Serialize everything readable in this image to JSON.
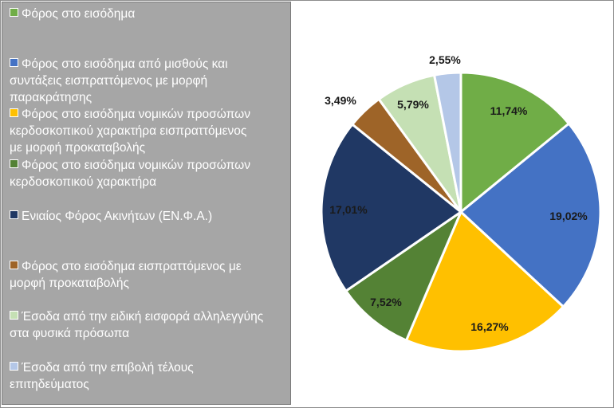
{
  "chart_data": {
    "type": "pie",
    "categories": [
      "Φόρος στο εισόδημα",
      "Φόρος στο εισόδημα από μισθούς και συντάξεις εισπραττόμενος με μορφή παρακράτησης",
      "Φόρος στο εισόδημα νομικών προσώπων κερδοσκοπικού χαρακτήρα εισπραττόμενος με μορφή προκαταβολής",
      "Φόρος στο εισόδημα νομικών προσώπων κερδοσκοπικού χαρακτήρα",
      "Ενιαίος Φόρος Ακινήτων (ΕΝ.Φ.Α.)",
      "Φόρος στο εισόδημα εισπραττόμενος με μορφή προκαταβολής",
      "Έσοδα από την ειδική εισφορά αλληλεγγύης στα φυσικά πρόσωπα",
      "Έσοδα από την επιβολή τέλους επιτηδεύματος"
    ],
    "values": [
      11.74,
      19.02,
      16.27,
      7.52,
      17.01,
      3.49,
      5.79,
      2.55
    ],
    "data_labels": [
      "11,74%",
      "19,02%",
      "16,27%",
      "7,52%",
      "17,01%",
      "3,49%",
      "5,79%",
      "2,55%"
    ],
    "legend_lines": [
      [
        "Φόρος στο εισόδημα"
      ],
      [
        "Φόρος στο εισόδημα από μισθούς και",
        "συντάξεις εισπραττόμενος με μορφή",
        "παρακράτησης"
      ],
      [
        "Φόρος στο εισόδημα νομικών προσώπων",
        "κερδοσκοπικού χαρακτήρα εισπραττόμενος",
        "με μορφή προκαταβολής"
      ],
      [
        "Φόρος στο εισόδημα νομικών προσώπων",
        "κερδοσκοπικού χαρακτήρα"
      ],
      [
        "Ενιαίος Φόρος Ακινήτων (ΕΝ.Φ.Α.)"
      ],
      [
        "Φόρος στο εισόδημα εισπραττόμενος με",
        "μορφή προκαταβολής"
      ],
      [
        "Έσοδα από την ειδική εισφορά αλληλεγγύης",
        "στα φυσικά πρόσωπα"
      ],
      [
        "Έσοδα από την επιβολή τέλους",
        "επιτηδεύματος"
      ]
    ],
    "colors": [
      "#70ad47",
      "#4472c4",
      "#ffc000",
      "#548235",
      "#203864",
      "#9e6428",
      "#c5e0b4",
      "#b4c7e7"
    ],
    "legend_placement": "left",
    "title": "",
    "xlabel": "",
    "ylabel": ""
  }
}
